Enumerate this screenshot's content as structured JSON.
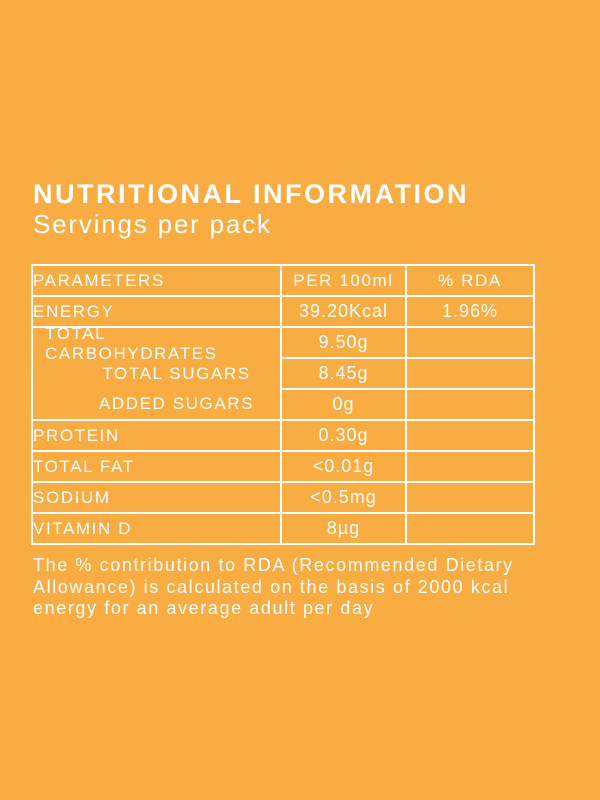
{
  "colors": {
    "background": "#F9AC42",
    "text": "#FFFFFF",
    "table_border": "#FFFFFF"
  },
  "header": {
    "title": "NUTRITIONAL INFORMATION",
    "subtitle": "Servings per pack"
  },
  "table": {
    "column_headers": {
      "parameters": "PARAMETERS",
      "per_100ml": "PER 100ml",
      "rda": "% RDA"
    },
    "energy": {
      "label": "ENERGY",
      "value": "39.20Kcal",
      "rda": "1.96%"
    },
    "carbohydrates": {
      "label": "TOTAL CARBOHYDRATES",
      "value": "9.50g",
      "rda": "",
      "total_sugars": {
        "label": "TOTAL SUGARS",
        "value": "8.45g",
        "rda": ""
      },
      "added_sugars": {
        "label": "ADDED SUGARS",
        "value": "0g",
        "rda": ""
      }
    },
    "protein": {
      "label": "PROTEIN",
      "value": "0.30g",
      "rda": ""
    },
    "total_fat": {
      "label": "TOTAL FAT",
      "value": "<0.01g",
      "rda": ""
    },
    "sodium": {
      "label": "SODIUM",
      "value": "<0.5mg",
      "rda": ""
    },
    "vitamin_d": {
      "label": "VITAMIN D",
      "value": "8µg",
      "rda": ""
    }
  },
  "footnote": {
    "lines": [
      "The % contribution to RDA (Recommended Dietary",
      "Allowance) is calculated on the basis of 2000 kcal",
      "energy for an average adult per day"
    ]
  }
}
